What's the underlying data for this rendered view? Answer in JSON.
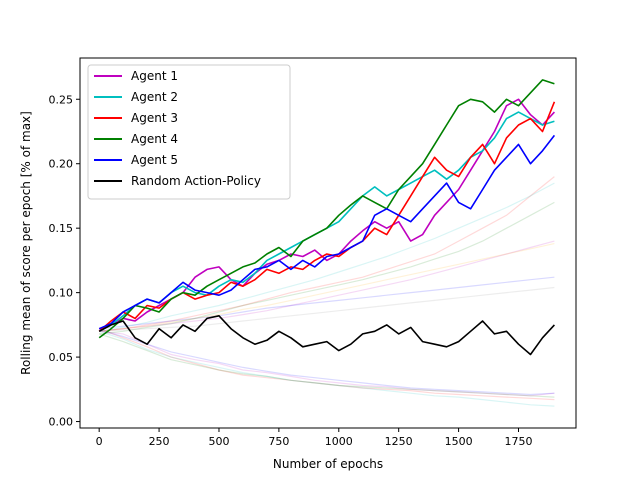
{
  "chart_data": {
    "type": "line",
    "title": "",
    "xlabel": "Number of epochs",
    "ylabel": "Rolling mean of score per epoch [% of max]",
    "xlim": [
      -80,
      1990
    ],
    "ylim": [
      -0.005,
      0.282
    ],
    "xticks": [
      0,
      250,
      500,
      750,
      1000,
      1250,
      1500,
      1750
    ],
    "yticks": [
      0.0,
      0.05,
      0.1,
      0.15,
      0.2,
      0.25
    ],
    "xtick_labels": [
      "0",
      "250",
      "500",
      "750",
      "1000",
      "1250",
      "1500",
      "1750"
    ],
    "ytick_labels": [
      "0.00",
      "0.05",
      "0.10",
      "0.15",
      "0.20",
      "0.25"
    ],
    "legend_position": "top-left",
    "grid": false,
    "series": [
      {
        "name": "Agent 1",
        "color": "#bf00bf",
        "x": [
          0,
          50,
          100,
          150,
          200,
          250,
          300,
          350,
          400,
          450,
          500,
          550,
          600,
          650,
          700,
          750,
          800,
          850,
          900,
          950,
          1000,
          1050,
          1100,
          1150,
          1200,
          1250,
          1300,
          1350,
          1400,
          1450,
          1500,
          1550,
          1600,
          1650,
          1700,
          1750,
          1800,
          1850,
          1900
        ],
        "y": [
          0.072,
          0.075,
          0.08,
          0.078,
          0.085,
          0.09,
          0.095,
          0.1,
          0.112,
          0.118,
          0.12,
          0.11,
          0.105,
          0.115,
          0.122,
          0.125,
          0.13,
          0.128,
          0.133,
          0.125,
          0.13,
          0.14,
          0.148,
          0.155,
          0.15,
          0.155,
          0.14,
          0.145,
          0.16,
          0.17,
          0.18,
          0.195,
          0.21,
          0.225,
          0.245,
          0.25,
          0.238,
          0.23,
          0.24
        ]
      },
      {
        "name": "Agent 2",
        "color": "#00bfbf",
        "x": [
          0,
          50,
          100,
          150,
          200,
          250,
          300,
          350,
          400,
          450,
          500,
          550,
          600,
          650,
          700,
          750,
          800,
          850,
          900,
          950,
          1000,
          1050,
          1100,
          1150,
          1200,
          1250,
          1300,
          1350,
          1400,
          1450,
          1500,
          1550,
          1600,
          1650,
          1700,
          1750,
          1800,
          1850,
          1900
        ],
        "y": [
          0.07,
          0.075,
          0.082,
          0.09,
          0.095,
          0.092,
          0.1,
          0.105,
          0.1,
          0.098,
          0.105,
          0.11,
          0.108,
          0.115,
          0.125,
          0.13,
          0.135,
          0.14,
          0.145,
          0.15,
          0.155,
          0.165,
          0.175,
          0.182,
          0.175,
          0.18,
          0.185,
          0.19,
          0.195,
          0.188,
          0.195,
          0.205,
          0.21,
          0.22,
          0.235,
          0.24,
          0.235,
          0.23,
          0.233
        ]
      },
      {
        "name": "Agent 3",
        "color": "#ff0000",
        "x": [
          0,
          50,
          100,
          150,
          200,
          250,
          300,
          350,
          400,
          450,
          500,
          550,
          600,
          650,
          700,
          750,
          800,
          850,
          900,
          950,
          1000,
          1050,
          1100,
          1150,
          1200,
          1250,
          1300,
          1350,
          1400,
          1450,
          1500,
          1550,
          1600,
          1650,
          1700,
          1750,
          1800,
          1850,
          1900
        ],
        "y": [
          0.07,
          0.078,
          0.085,
          0.08,
          0.09,
          0.088,
          0.095,
          0.1,
          0.095,
          0.098,
          0.1,
          0.108,
          0.105,
          0.11,
          0.118,
          0.115,
          0.12,
          0.118,
          0.125,
          0.13,
          0.128,
          0.135,
          0.14,
          0.15,
          0.145,
          0.16,
          0.175,
          0.19,
          0.205,
          0.195,
          0.19,
          0.205,
          0.215,
          0.2,
          0.22,
          0.23,
          0.235,
          0.225,
          0.248
        ]
      },
      {
        "name": "Agent 4",
        "color": "#008000",
        "x": [
          0,
          50,
          100,
          150,
          200,
          250,
          300,
          350,
          400,
          450,
          500,
          550,
          600,
          650,
          700,
          750,
          800,
          850,
          900,
          950,
          1000,
          1050,
          1100,
          1150,
          1200,
          1250,
          1300,
          1350,
          1400,
          1450,
          1500,
          1550,
          1600,
          1650,
          1700,
          1750,
          1800,
          1850,
          1900
        ],
        "y": [
          0.065,
          0.072,
          0.08,
          0.09,
          0.088,
          0.085,
          0.095,
          0.1,
          0.098,
          0.105,
          0.11,
          0.115,
          0.12,
          0.123,
          0.13,
          0.135,
          0.128,
          0.14,
          0.145,
          0.15,
          0.16,
          0.168,
          0.175,
          0.17,
          0.165,
          0.18,
          0.19,
          0.2,
          0.215,
          0.23,
          0.245,
          0.25,
          0.248,
          0.24,
          0.25,
          0.245,
          0.255,
          0.265,
          0.262
        ]
      },
      {
        "name": "Agent 5",
        "color": "#0000ff",
        "x": [
          0,
          50,
          100,
          150,
          200,
          250,
          300,
          350,
          400,
          450,
          500,
          550,
          600,
          650,
          700,
          750,
          800,
          850,
          900,
          950,
          1000,
          1050,
          1100,
          1150,
          1200,
          1250,
          1300,
          1350,
          1400,
          1450,
          1500,
          1550,
          1600,
          1650,
          1700,
          1750,
          1800,
          1850,
          1900
        ],
        "y": [
          0.072,
          0.076,
          0.085,
          0.09,
          0.095,
          0.092,
          0.1,
          0.108,
          0.102,
          0.1,
          0.098,
          0.102,
          0.11,
          0.118,
          0.12,
          0.125,
          0.118,
          0.125,
          0.12,
          0.128,
          0.13,
          0.135,
          0.14,
          0.16,
          0.165,
          0.16,
          0.155,
          0.165,
          0.175,
          0.185,
          0.17,
          0.165,
          0.18,
          0.195,
          0.205,
          0.215,
          0.2,
          0.21,
          0.222
        ]
      },
      {
        "name": "Random Action-Policy",
        "color": "#000000",
        "x": [
          0,
          50,
          100,
          150,
          200,
          250,
          300,
          350,
          400,
          450,
          500,
          550,
          600,
          650,
          700,
          750,
          800,
          850,
          900,
          950,
          1000,
          1050,
          1100,
          1150,
          1200,
          1250,
          1300,
          1350,
          1400,
          1450,
          1500,
          1550,
          1600,
          1650,
          1700,
          1750,
          1800,
          1850,
          1900
        ],
        "y": [
          0.07,
          0.075,
          0.078,
          0.065,
          0.06,
          0.072,
          0.065,
          0.075,
          0.07,
          0.08,
          0.082,
          0.072,
          0.065,
          0.06,
          0.063,
          0.07,
          0.065,
          0.058,
          0.06,
          0.062,
          0.055,
          0.06,
          0.068,
          0.07,
          0.075,
          0.068,
          0.073,
          0.062,
          0.06,
          0.058,
          0.062,
          0.07,
          0.078,
          0.068,
          0.07,
          0.06,
          0.052,
          0.065,
          0.075
        ]
      }
    ],
    "background_series": {
      "style": "faint, translucent",
      "x": [
        0,
        100,
        200,
        300,
        400,
        500,
        600,
        700,
        800,
        900,
        1000,
        1100,
        1200,
        1300,
        1400,
        1500,
        1600,
        1700,
        1800,
        1900
      ],
      "runs": [
        {
          "color": "#bf00bf",
          "y": [
            0.07,
            0.068,
            0.06,
            0.052,
            0.048,
            0.045,
            0.04,
            0.038,
            0.035,
            0.032,
            0.03,
            0.028,
            0.027,
            0.025,
            0.024,
            0.023,
            0.022,
            0.021,
            0.02,
            0.022
          ]
        },
        {
          "color": "#ff0000",
          "y": [
            0.072,
            0.065,
            0.058,
            0.05,
            0.045,
            0.04,
            0.036,
            0.034,
            0.032,
            0.03,
            0.028,
            0.026,
            0.025,
            0.024,
            0.022,
            0.021,
            0.02,
            0.019,
            0.018,
            0.017
          ]
        },
        {
          "color": "#008000",
          "y": [
            0.068,
            0.062,
            0.055,
            0.048,
            0.044,
            0.04,
            0.037,
            0.035,
            0.032,
            0.03,
            0.028,
            0.027,
            0.026,
            0.025,
            0.024,
            0.023,
            0.022,
            0.021,
            0.02,
            0.019
          ]
        },
        {
          "color": "#00bfbf",
          "y": [
            0.07,
            0.064,
            0.056,
            0.05,
            0.046,
            0.042,
            0.038,
            0.035,
            0.032,
            0.03,
            0.028,
            0.026,
            0.024,
            0.022,
            0.02,
            0.019,
            0.017,
            0.015,
            0.013,
            0.012
          ]
        },
        {
          "color": "#0000ff",
          "y": [
            0.071,
            0.066,
            0.06,
            0.054,
            0.05,
            0.046,
            0.042,
            0.039,
            0.036,
            0.034,
            0.032,
            0.03,
            0.028,
            0.026,
            0.025,
            0.024,
            0.023,
            0.022,
            0.021,
            0.022
          ]
        },
        {
          "color": "#bf00bf",
          "y": [
            0.07,
            0.072,
            0.074,
            0.076,
            0.078,
            0.08,
            0.083,
            0.086,
            0.09,
            0.094,
            0.098,
            0.102,
            0.106,
            0.11,
            0.115,
            0.12,
            0.125,
            0.13,
            0.135,
            0.14
          ]
        },
        {
          "color": "#008000",
          "y": [
            0.068,
            0.07,
            0.073,
            0.076,
            0.08,
            0.085,
            0.09,
            0.094,
            0.098,
            0.102,
            0.106,
            0.11,
            0.115,
            0.12,
            0.126,
            0.132,
            0.14,
            0.15,
            0.16,
            0.17
          ]
        },
        {
          "color": "#ff0000",
          "y": [
            0.07,
            0.072,
            0.075,
            0.078,
            0.082,
            0.086,
            0.09,
            0.095,
            0.1,
            0.104,
            0.108,
            0.112,
            0.118,
            0.124,
            0.13,
            0.14,
            0.15,
            0.16,
            0.175,
            0.19
          ]
        },
        {
          "color": "#0000ff",
          "y": [
            0.072,
            0.074,
            0.076,
            0.078,
            0.08,
            0.082,
            0.085,
            0.088,
            0.09,
            0.092,
            0.094,
            0.096,
            0.098,
            0.1,
            0.102,
            0.104,
            0.106,
            0.108,
            0.11,
            0.112
          ]
        },
        {
          "color": "#00bfbf",
          "y": [
            0.07,
            0.073,
            0.077,
            0.082,
            0.086,
            0.09,
            0.095,
            0.1,
            0.105,
            0.11,
            0.116,
            0.122,
            0.128,
            0.135,
            0.142,
            0.15,
            0.158,
            0.166,
            0.175,
            0.185
          ]
        },
        {
          "color": "#ffa500",
          "y": [
            0.07,
            0.072,
            0.074,
            0.077,
            0.08,
            0.083,
            0.087,
            0.09,
            0.094,
            0.098,
            0.102,
            0.106,
            0.11,
            0.114,
            0.118,
            0.122,
            0.126,
            0.13,
            0.134,
            0.138
          ]
        },
        {
          "color": "#888888",
          "y": [
            0.07,
            0.071,
            0.072,
            0.073,
            0.074,
            0.076,
            0.078,
            0.08,
            0.082,
            0.084,
            0.086,
            0.088,
            0.09,
            0.092,
            0.094,
            0.096,
            0.098,
            0.1,
            0.102,
            0.104
          ]
        }
      ]
    }
  }
}
